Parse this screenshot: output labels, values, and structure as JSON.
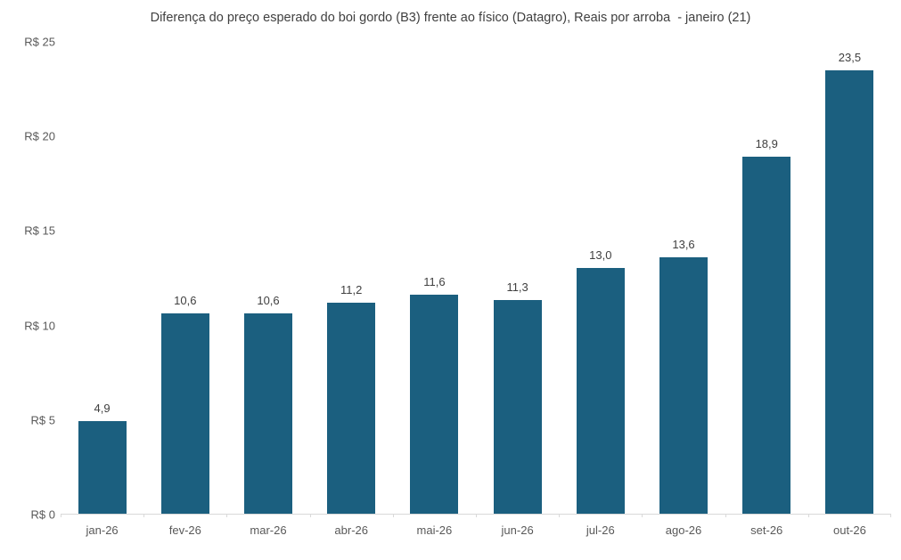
{
  "chart_data": {
    "type": "bar",
    "title": "Diferença do preço esperado do boi gordo (B3) frente ao físico (Datagro), Reais por arroba  - janeiro (21)",
    "categories": [
      "jan-26",
      "fev-26",
      "mar-26",
      "abr-26",
      "mai-26",
      "jun-26",
      "jul-26",
      "ago-26",
      "set-26",
      "out-26"
    ],
    "values": [
      4.9,
      10.6,
      10.6,
      11.2,
      11.6,
      11.3,
      13.0,
      13.6,
      18.9,
      23.5
    ],
    "value_labels": [
      "4,9",
      "10,6",
      "10,6",
      "11,2",
      "11,6",
      "11,3",
      "13,0",
      "13,6",
      "18,9",
      "23,5"
    ],
    "xlabel": "",
    "ylabel": "",
    "ylim": [
      0,
      25
    ],
    "y_ticks": [
      {
        "value": 0,
        "label": "R$ 0"
      },
      {
        "value": 5,
        "label": "R$ 5"
      },
      {
        "value": 10,
        "label": "R$ 10"
      },
      {
        "value": 15,
        "label": "R$ 15"
      },
      {
        "value": 20,
        "label": "R$ 20"
      },
      {
        "value": 25,
        "label": "R$ 25"
      }
    ],
    "grid": false,
    "legend": "none",
    "colors": {
      "bar": "#1b5f7f",
      "title_text": "#404040",
      "axis_text": "#595959",
      "data_label_text": "#404040",
      "axis_line": "#d9d9d9",
      "background": "#ffffff"
    }
  }
}
